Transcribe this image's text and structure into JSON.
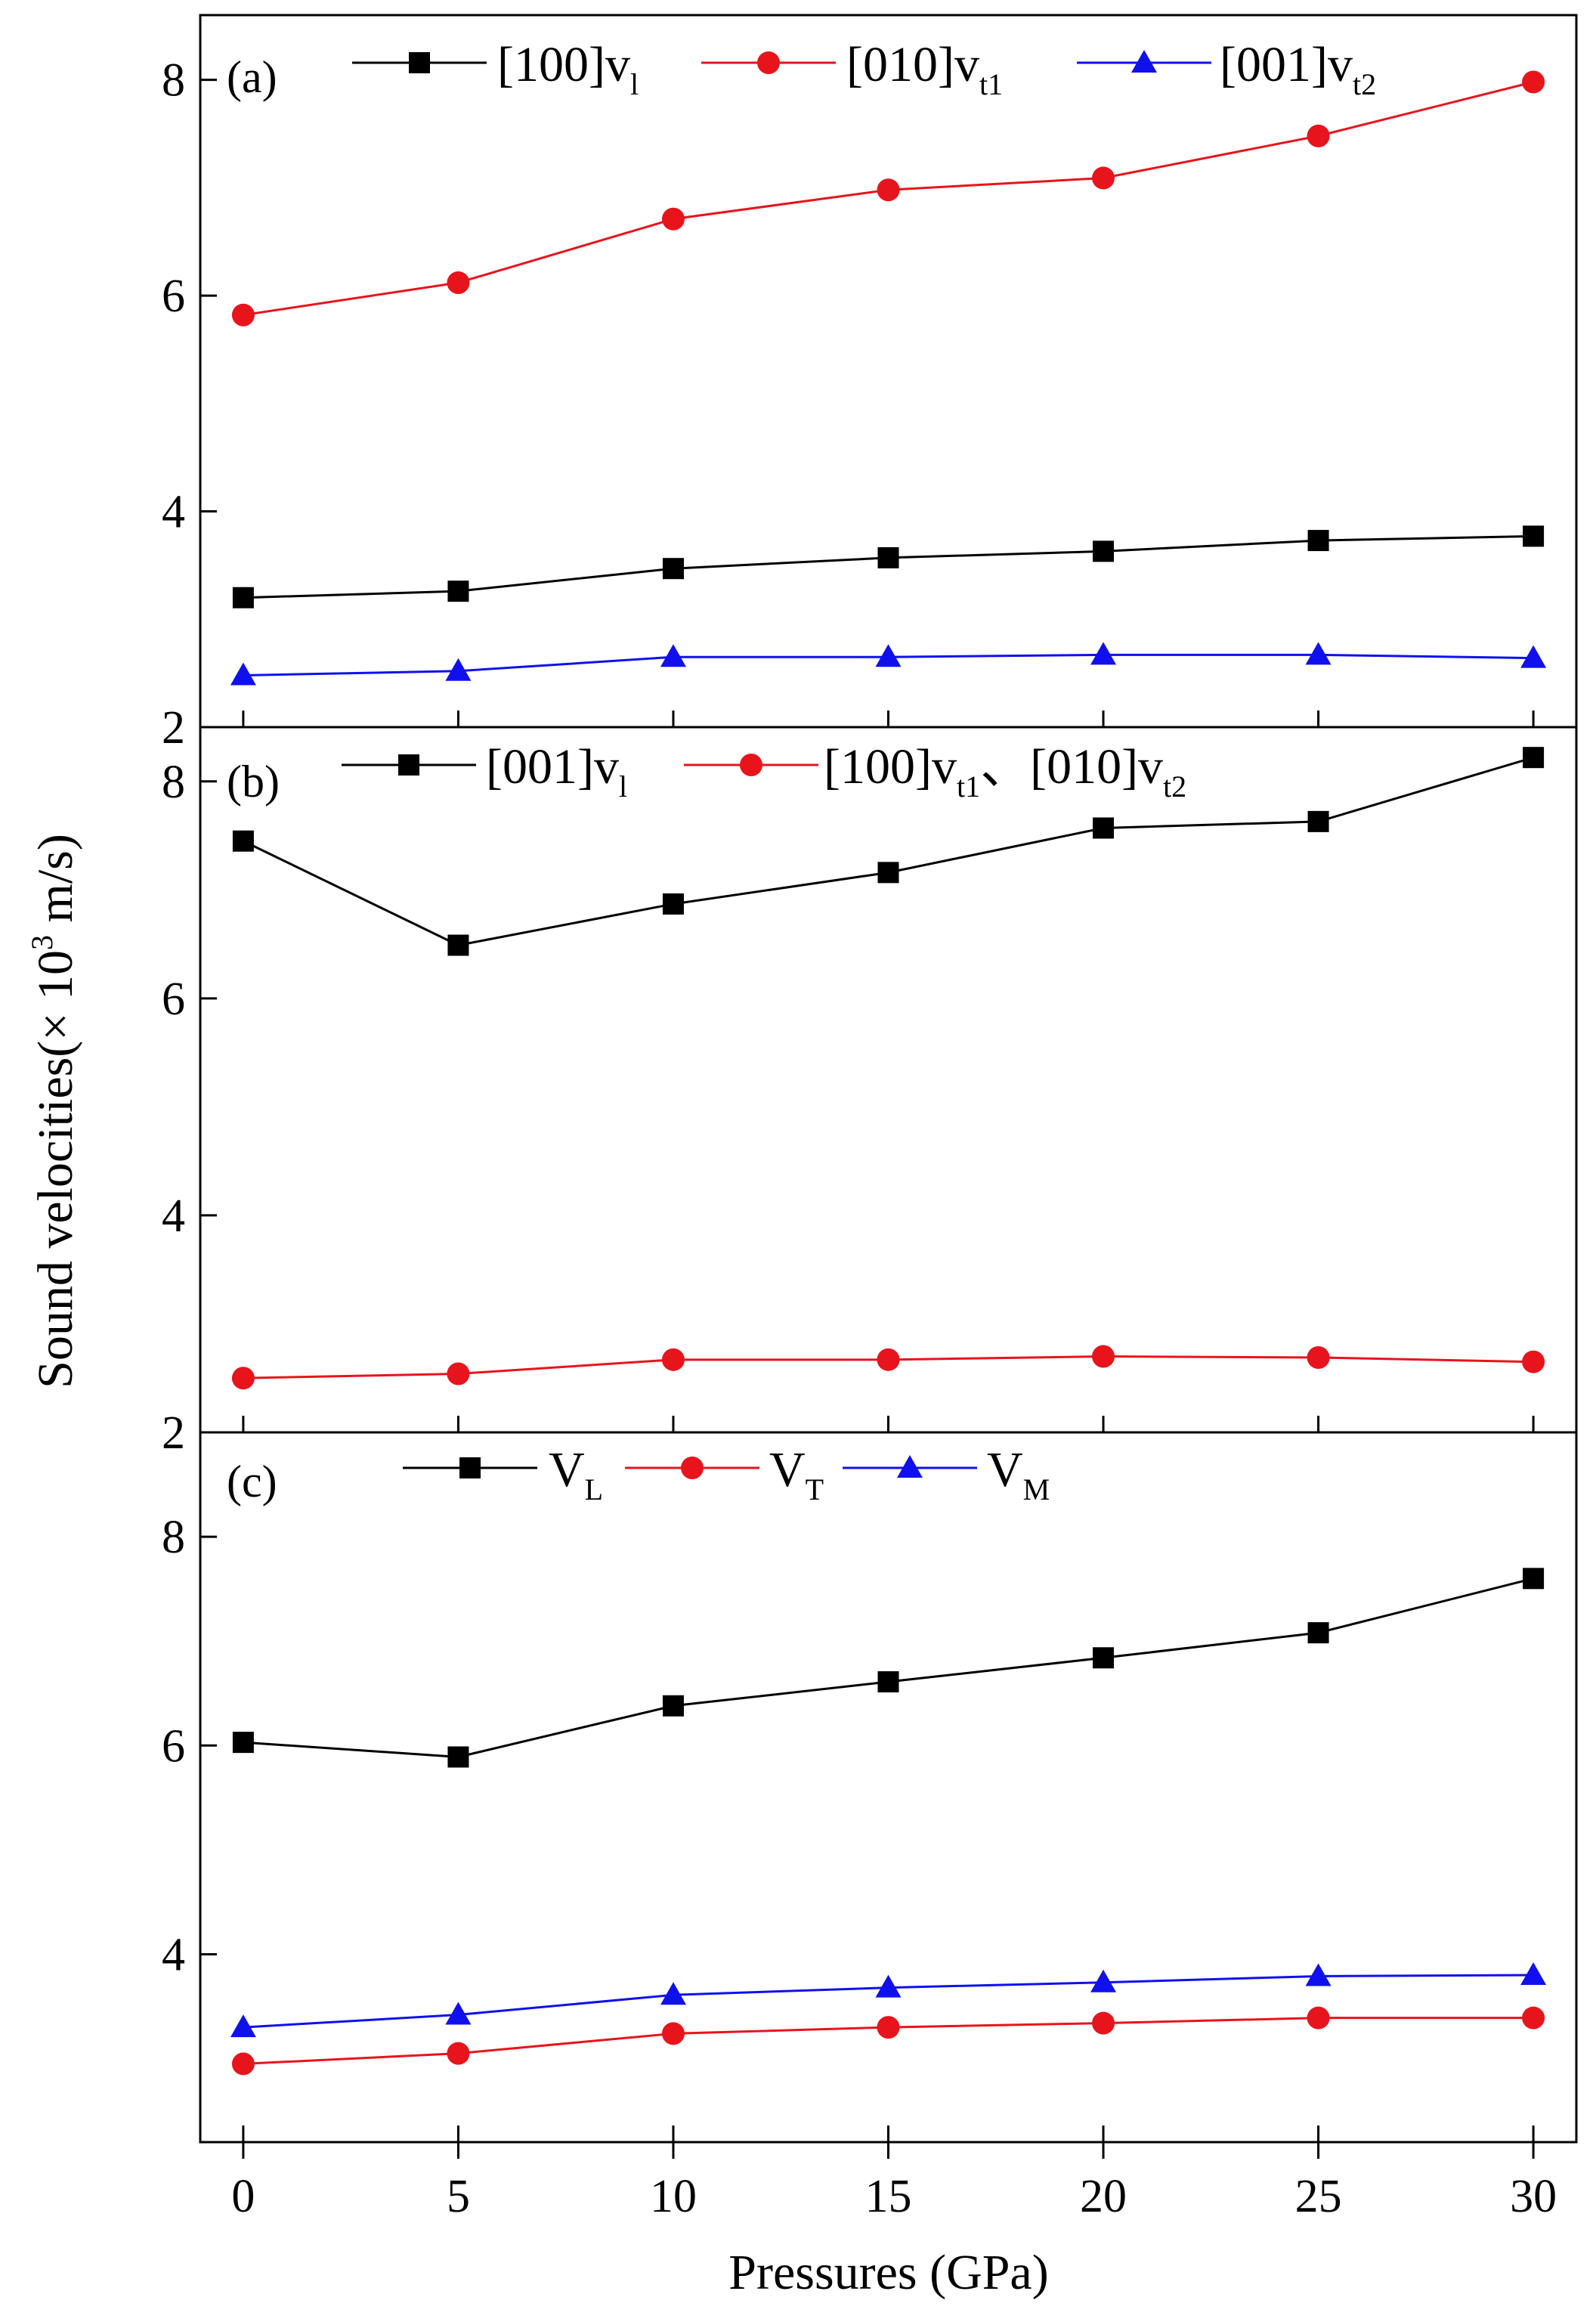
{
  "chart_data": [
    {
      "type": "line",
      "panel_label": "(a)",
      "x": [
        0,
        5,
        10,
        15,
        20,
        25,
        30
      ],
      "xlim": [
        -1,
        31
      ],
      "ylim": [
        2,
        8.6
      ],
      "yticks": [
        2,
        4,
        6,
        8
      ],
      "series": [
        {
          "name": "[100]v",
          "sub": "l",
          "color": "#000000",
          "marker": "square",
          "values": [
            3.2,
            3.26,
            3.47,
            3.57,
            3.63,
            3.73,
            3.77
          ]
        },
        {
          "name": "[010]v",
          "sub": "t1",
          "color": "#e8141c",
          "marker": "circle",
          "values": [
            5.82,
            6.12,
            6.71,
            6.98,
            7.09,
            7.48,
            7.98
          ]
        },
        {
          "name": "[001]v",
          "sub": "t2",
          "color": "#1010ee",
          "marker": "triangle",
          "values": [
            2.48,
            2.52,
            2.65,
            2.65,
            2.67,
            2.67,
            2.64
          ]
        }
      ]
    },
    {
      "type": "line",
      "panel_label": "(b)",
      "x": [
        0,
        5,
        10,
        15,
        20,
        25,
        30
      ],
      "xlim": [
        -1,
        31
      ],
      "ylim": [
        2,
        8.5
      ],
      "yticks": [
        2,
        4,
        6,
        8
      ],
      "series": [
        {
          "name": "[001]v",
          "sub": "l",
          "color": "#000000",
          "marker": "square",
          "values": [
            7.45,
            6.49,
            6.87,
            7.16,
            7.57,
            7.63,
            8.22
          ]
        },
        {
          "name": "[100]v",
          "sub": "t1",
          "name2": "、[010]v",
          "sub2": "t2",
          "color": "#e8141c",
          "marker": "circle",
          "values": [
            2.5,
            2.54,
            2.67,
            2.67,
            2.7,
            2.69,
            2.65
          ]
        }
      ]
    },
    {
      "type": "line",
      "panel_label": "(c)",
      "x": [
        0,
        5,
        10,
        15,
        20,
        25,
        30
      ],
      "xlim": [
        -1,
        31
      ],
      "ylim": [
        2.2,
        9.0
      ],
      "yticks": [
        4,
        6,
        8
      ],
      "series": [
        {
          "name": "V",
          "sub": "L",
          "color": "#000000",
          "marker": "square",
          "values": [
            6.03,
            5.89,
            6.38,
            6.61,
            6.84,
            7.08,
            7.6
          ]
        },
        {
          "name": "V",
          "sub": "T",
          "color": "#e8141c",
          "marker": "circle",
          "values": [
            2.95,
            3.05,
            3.24,
            3.3,
            3.34,
            3.39,
            3.39
          ]
        },
        {
          "name": "V",
          "sub": "M",
          "color": "#1010ee",
          "marker": "triangle",
          "values": [
            3.3,
            3.42,
            3.61,
            3.68,
            3.73,
            3.79,
            3.8
          ]
        }
      ]
    }
  ],
  "axes": {
    "xlabel": "Pressures (GPa)",
    "ylabel": "Sound velocities(× 10",
    "ylabel_sup": "3",
    "ylabel_end": " m/s)",
    "xtick_labels": [
      "0",
      "5",
      "10",
      "15",
      "20",
      "25",
      "30"
    ]
  }
}
